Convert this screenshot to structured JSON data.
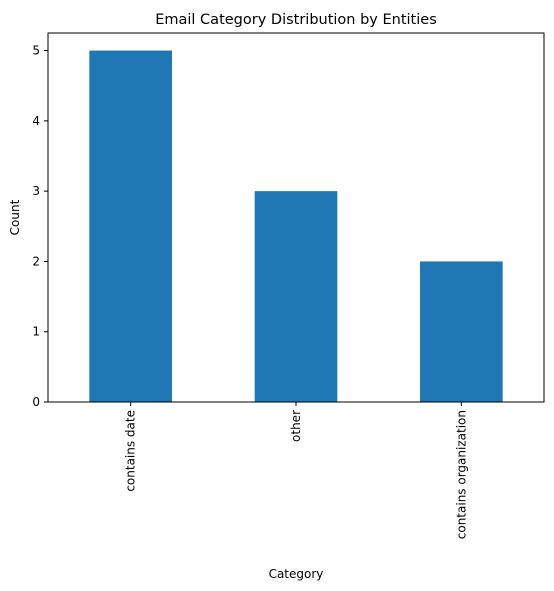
{
  "chart_data": {
    "type": "bar",
    "title": "Email Category Distribution by Entities",
    "xlabel": "Category",
    "ylabel": "Count",
    "categories": [
      "contains date",
      "other",
      "contains organization"
    ],
    "values": [
      5,
      3,
      2
    ],
    "ylim": [
      0,
      5.25
    ],
    "yticks": [
      "0",
      "1",
      "2",
      "3",
      "4",
      "5"
    ],
    "bar_color": "#1f77b4",
    "grid": false,
    "legend": "none",
    "xtick_rotation": "vertical"
  }
}
